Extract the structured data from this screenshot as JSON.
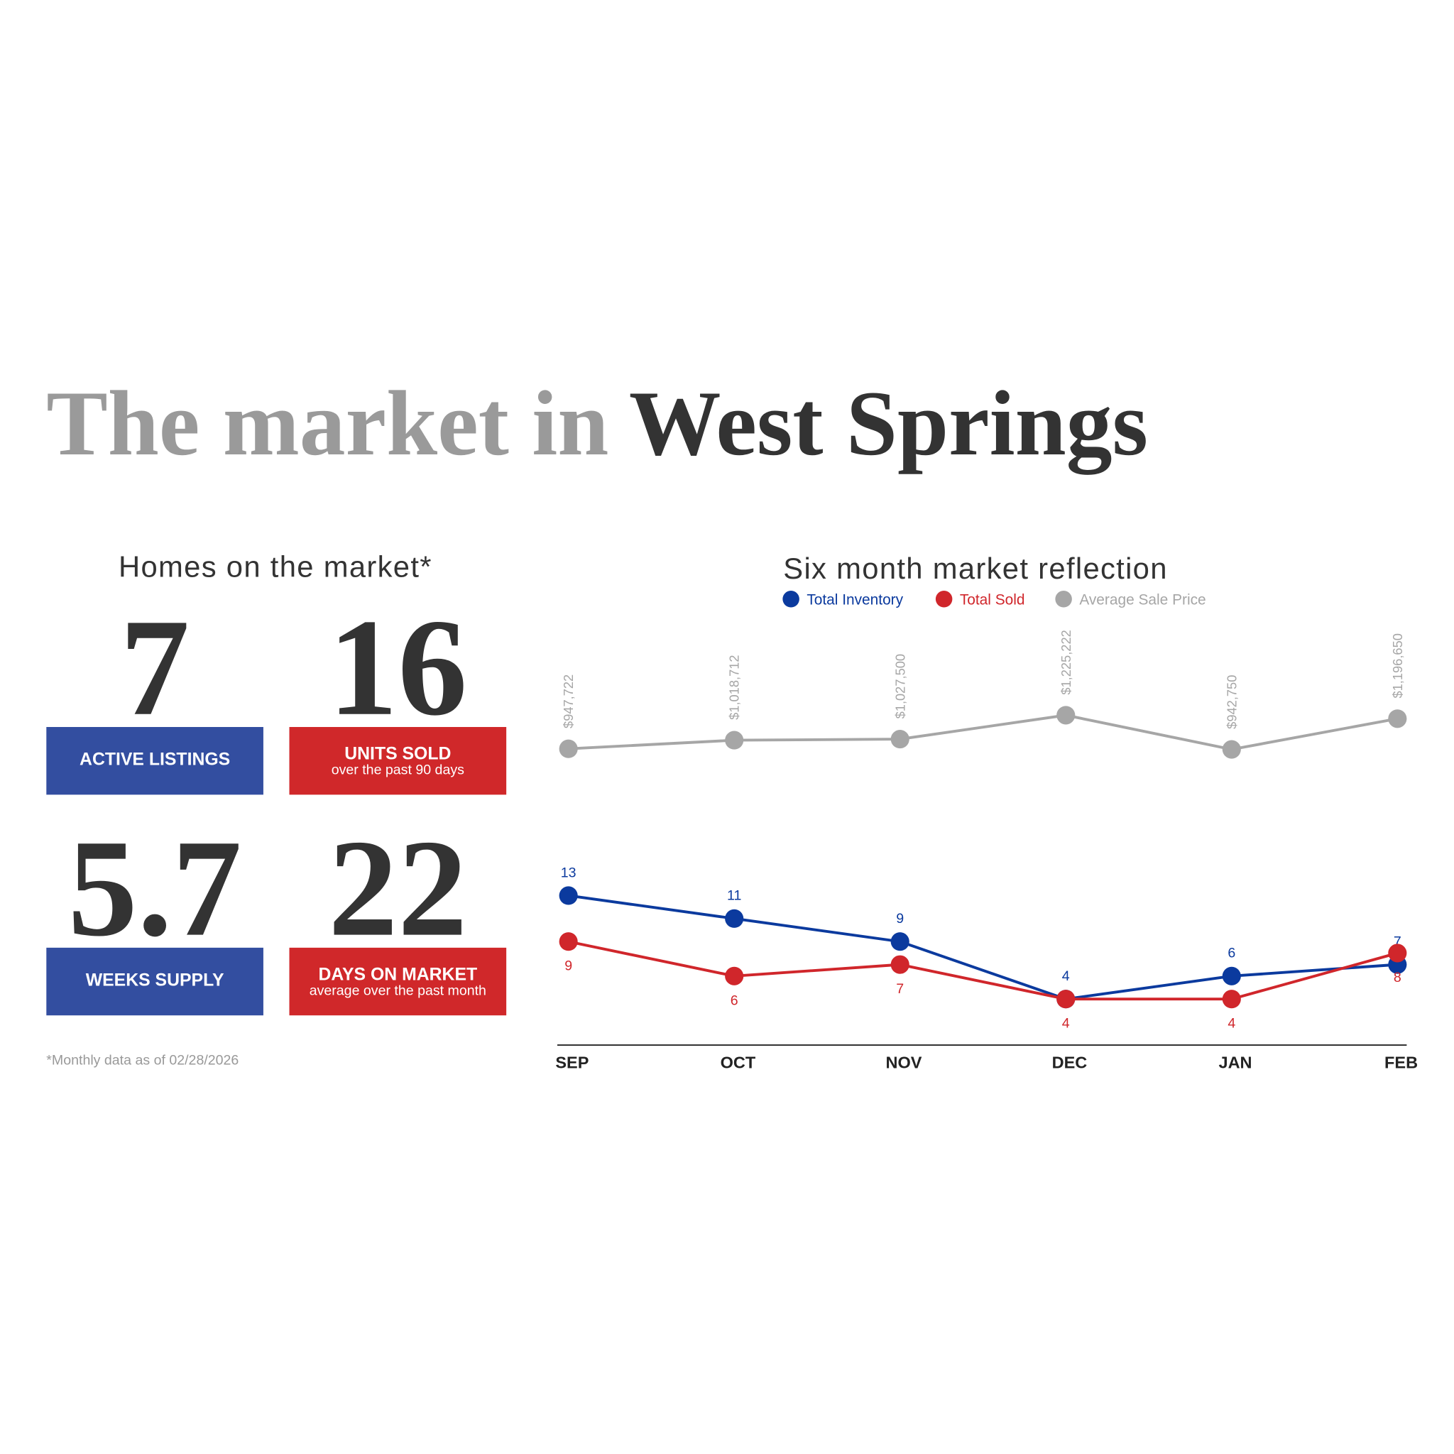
{
  "header": {
    "title_lead": "The market in",
    "title_place": "West Springs"
  },
  "stats_title": "Homes on the market*",
  "stats": [
    {
      "value": 7,
      "label": "ACTIVE LISTINGS",
      "color": "#334ea0"
    },
    {
      "value": 16,
      "label": "UNITS SOLD",
      "sublabel": "over the past 90 days",
      "color": "#d0282a"
    },
    {
      "value": 5.7,
      "label": "WEEKS SUPPLY",
      "color": "#334ea0"
    },
    {
      "value": 22,
      "label": "DAYS ON MARKET",
      "sublabel": "average over the past month",
      "color": "#d0282a"
    }
  ],
  "footnote": "*Monthly data as of 02/28/2026",
  "chart_data": {
    "type": "line",
    "title": "Six month market reflection",
    "categories": [
      "SEP",
      "OCT",
      "NOV",
      "DEC",
      "JAN",
      "FEB"
    ],
    "series": [
      {
        "name": "Total Inventory",
        "color": "#0b3a9e",
        "values": [
          13,
          11,
          9,
          4,
          6,
          7
        ]
      },
      {
        "name": "Total Sold",
        "color": "#d0262b",
        "values": [
          9,
          6,
          7,
          4,
          4,
          8
        ]
      },
      {
        "name": "Average Sale Price",
        "color": "#a6a6a6",
        "axis": "y2",
        "values": [
          947722,
          1018712,
          1027500,
          1225222,
          942750,
          1196650
        ],
        "value_labels": [
          "$947,722",
          "$1,018,712",
          "$1,027,500",
          "$1,225,222",
          "$942,750",
          "$1,196,650"
        ]
      }
    ],
    "ylim": [
      0,
      40
    ],
    "y2lim": [
      -1500000,
      2300000
    ],
    "legend": "top"
  }
}
